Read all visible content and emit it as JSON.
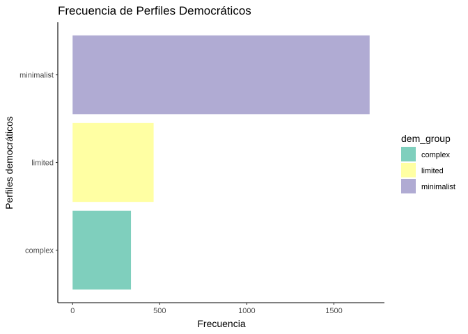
{
  "chart_data": {
    "type": "bar",
    "orientation": "horizontal",
    "title": "Frecuencia de Perfiles Democráticos",
    "xlabel": "Frecuencia",
    "ylabel": "Perfiles democráticos",
    "categories": [
      "complex",
      "limited",
      "minimalist"
    ],
    "values": [
      335,
      465,
      1705
    ],
    "colors": [
      "#7fcfbd",
      "#ffffa3",
      "#b0abd3"
    ],
    "xlim": [
      -85,
      1790
    ],
    "xticks": [
      0,
      500,
      1000,
      1500
    ],
    "xtick_labels": [
      "0",
      "500",
      "1000",
      "1500"
    ],
    "grid": false,
    "legend": {
      "title": "dem_group",
      "position": "right",
      "items": [
        {
          "label": "complex",
          "color": "#7fcfbd"
        },
        {
          "label": "limited",
          "color": "#ffffa3"
        },
        {
          "label": "minimalist",
          "color": "#b0abd3"
        }
      ]
    }
  }
}
